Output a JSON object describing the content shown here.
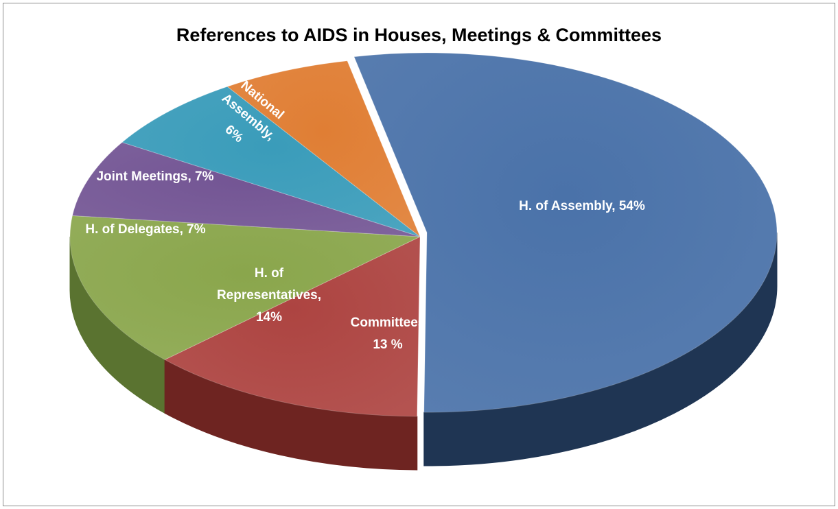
{
  "chart_data": {
    "type": "pie",
    "title": "References to AIDS in Houses, Meetings & Committees",
    "slices": [
      {
        "name": "H. of Assembly",
        "value": 54,
        "label_lines": [
          "H. of Assembly, 54%"
        ],
        "color": "#4a72a9",
        "side_color": "#1f3553"
      },
      {
        "name": "Committees",
        "value": 13,
        "label_lines": [
          "Committees",
          "13 %"
        ],
        "color": "#ad4441",
        "side_color": "#6e2421"
      },
      {
        "name": "H. of Representatives",
        "value": 14,
        "label_lines": [
          "H. of",
          "Representatives,",
          "14%"
        ],
        "color": "#8aa64c",
        "side_color": "#5a7330"
      },
      {
        "name": "H. of Delegates",
        "value": 7,
        "label_lines": [
          "H. of Delegates, 7%"
        ],
        "color": "#735594",
        "side_color": "#4a3466"
      },
      {
        "name": "Joint Meetings",
        "value": 7,
        "label_lines": [
          "Joint Meetings, 7%"
        ],
        "color": "#3a9cba",
        "side_color": "#246b80"
      },
      {
        "name": "National Assembly",
        "value": 6,
        "label_lines": [
          "National",
          "Assembly,",
          "6%"
        ],
        "color": "#e07e34",
        "side_color": "#9c5217"
      }
    ]
  }
}
